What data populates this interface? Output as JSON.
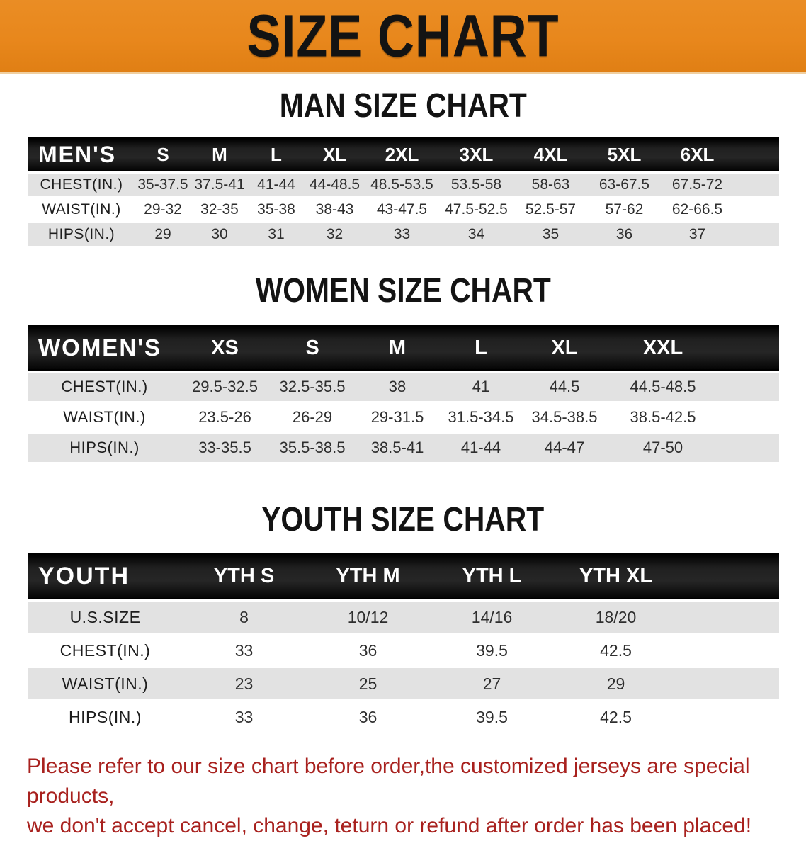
{
  "banner": {
    "title": "SIZE CHART",
    "background_color": "#e8871c",
    "text_color": "#131313"
  },
  "sections": [
    {
      "heading": "MAN SIZE CHART",
      "table": {
        "corner_label": "MEN'S",
        "columns": [
          "S",
          "M",
          "L",
          "XL",
          "2XL",
          "3XL",
          "4XL",
          "5XL",
          "6XL"
        ],
        "rows": [
          {
            "label": "CHEST(IN.)",
            "values": [
              "35-37.5",
              "37.5-41",
              "41-44",
              "44-48.5",
              "48.5-53.5",
              "53.5-58",
              "58-63",
              "63-67.5",
              "67.5-72"
            ]
          },
          {
            "label": "WAIST(IN.)",
            "values": [
              "29-32",
              "32-35",
              "35-38",
              "38-43",
              "43-47.5",
              "47.5-52.5",
              "52.5-57",
              "57-62",
              "62-66.5"
            ]
          },
          {
            "label": "HIPS(IN.)",
            "values": [
              "29",
              "30",
              "31",
              "32",
              "33",
              "34",
              "35",
              "36",
              "37"
            ]
          }
        ]
      }
    },
    {
      "heading": "WOMEN SIZE CHART",
      "table": {
        "corner_label": "WOMEN'S",
        "columns": [
          "XS",
          "S",
          "M",
          "L",
          "XL",
          "XXL"
        ],
        "rows": [
          {
            "label": "CHEST(IN.)",
            "values": [
              "29.5-32.5",
              "32.5-35.5",
              "38",
              "41",
              "44.5",
              "44.5-48.5"
            ]
          },
          {
            "label": "WAIST(IN.)",
            "values": [
              "23.5-26",
              "26-29",
              "29-31.5",
              "31.5-34.5",
              "34.5-38.5",
              "38.5-42.5"
            ]
          },
          {
            "label": "HIPS(IN.)",
            "values": [
              "33-35.5",
              "35.5-38.5",
              "38.5-41",
              "41-44",
              "44-47",
              "47-50"
            ]
          }
        ]
      }
    },
    {
      "heading": "YOUTH SIZE CHART",
      "table": {
        "corner_label": "YOUTH",
        "columns": [
          "YTH S",
          "YTH M",
          "YTH L",
          "YTH XL"
        ],
        "rows": [
          {
            "label": "U.S.SIZE",
            "values": [
              "8",
              "10/12",
              "14/16",
              "18/20"
            ]
          },
          {
            "label": "CHEST(IN.)",
            "values": [
              "33",
              "36",
              "39.5",
              "42.5"
            ]
          },
          {
            "label": "WAIST(IN.)",
            "values": [
              "23",
              "25",
              "27",
              "29"
            ]
          },
          {
            "label": "HIPS(IN.)",
            "values": [
              "33",
              "36",
              "39.5",
              "42.5"
            ]
          }
        ]
      }
    }
  ],
  "disclaimer": {
    "line1": "Please refer to our size chart before order,the customized jerseys are special products,",
    "line2": "we don't accept cancel, change, teturn or refund after order has been placed!",
    "text_color": "#a8211e"
  },
  "style_colors": {
    "header_bar": "#161616",
    "stripe_row": "#e2e2e2",
    "banner_orange": "#e8871c"
  }
}
